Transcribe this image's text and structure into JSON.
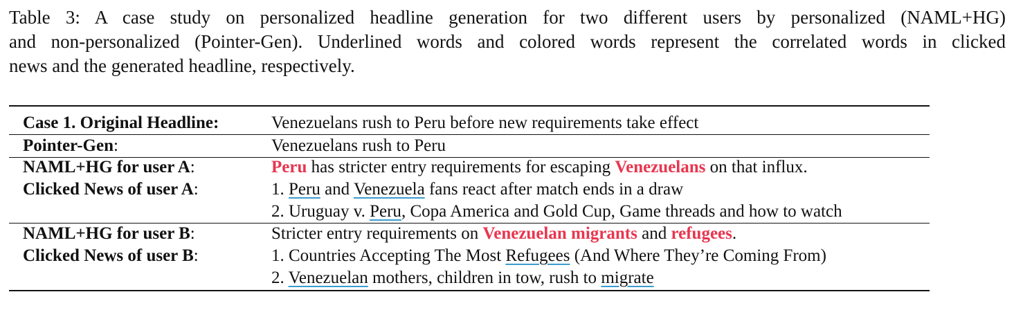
{
  "caption": {
    "lines": [
      "Table 3:  A case study on personalized headline generation for two different users by personalized (NAML+HG)",
      "and non-personalized (Pointer-Gen).  Underlined words and colored words represent the correlated words in clicked",
      "news and the generated headline, respectively."
    ]
  },
  "colors": {
    "highlight": "#e8364f",
    "underline": "#3a9ccf"
  },
  "table": {
    "rows": [
      {
        "label": "Case 1. Original Headline:",
        "label_suffix": "",
        "segments": [
          {
            "text": "Venezuelans rush to Peru before new requirements take effect",
            "style": "plain"
          }
        ]
      },
      {
        "label": "Pointer-Gen",
        "label_suffix": ":",
        "segments": [
          {
            "text": "Venezuelans rush to Peru",
            "style": "plain"
          }
        ]
      },
      {
        "label": "NAML+HG for user A",
        "label_suffix": ":",
        "segments": [
          {
            "text": "Peru",
            "style": "highlight"
          },
          {
            "text": " has stricter entry requirements for escaping ",
            "style": "plain"
          },
          {
            "text": "Venezuelans",
            "style": "highlight"
          },
          {
            "text": " on that influx.",
            "style": "plain"
          }
        ]
      },
      {
        "label": "Clicked News of user A",
        "label_suffix": ":",
        "segments": [
          {
            "text": "1. ",
            "style": "plain"
          },
          {
            "text": "Peru",
            "style": "underline"
          },
          {
            "text": " and ",
            "style": "plain"
          },
          {
            "text": "Venezuela",
            "style": "underline"
          },
          {
            "text": " fans react after match ends in a draw",
            "style": "plain"
          }
        ]
      },
      {
        "label": "",
        "label_suffix": "",
        "segments": [
          {
            "text": "2. Uruguay v. ",
            "style": "plain"
          },
          {
            "text": "Peru",
            "style": "underline"
          },
          {
            "text": ", Copa America and Gold Cup, Game threads and how to watch",
            "style": "plain"
          }
        ]
      },
      {
        "label": "NAML+HG for user B",
        "label_suffix": ":",
        "segments": [
          {
            "text": "Stricter entry requirements on ",
            "style": "plain"
          },
          {
            "text": "Venezuelan migrants",
            "style": "highlight"
          },
          {
            "text": " and ",
            "style": "plain"
          },
          {
            "text": "refugees",
            "style": "highlight"
          },
          {
            "text": ".",
            "style": "plain"
          }
        ]
      },
      {
        "label": "Clicked News of user B",
        "label_suffix": ":",
        "segments": [
          {
            "text": "1. Countries Accepting The Most ",
            "style": "plain"
          },
          {
            "text": "Refugees",
            "style": "underline"
          },
          {
            "text": " (And Where They’re Coming From)",
            "style": "plain"
          }
        ]
      },
      {
        "label": "",
        "label_suffix": "",
        "segments": [
          {
            "text": "2. ",
            "style": "plain"
          },
          {
            "text": "Venezuelan",
            "style": "underline"
          },
          {
            "text": " mothers, children in tow, rush to ",
            "style": "plain"
          },
          {
            "text": "migrate",
            "style": "underline"
          }
        ]
      }
    ]
  }
}
